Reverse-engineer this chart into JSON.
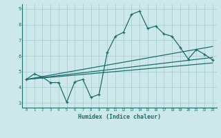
{
  "xlabel": "Humidex (Indice chaleur)",
  "bg_color": "#cce8ea",
  "grid_color": "#aacfd2",
  "line_color": "#1a6e6a",
  "xlim": [
    -0.5,
    23.5
  ],
  "ylim": [
    2.7,
    9.3
  ],
  "yticks": [
    3,
    4,
    5,
    6,
    7,
    8,
    9
  ],
  "xticks": [
    0,
    1,
    2,
    3,
    4,
    5,
    6,
    7,
    8,
    9,
    10,
    11,
    12,
    13,
    14,
    15,
    16,
    17,
    18,
    19,
    20,
    21,
    22,
    23
  ],
  "line1_x": [
    0,
    1,
    2,
    3,
    4,
    5,
    6,
    7,
    8,
    9,
    10,
    11,
    12,
    13,
    14,
    15,
    16,
    17,
    18,
    19,
    20,
    21,
    22,
    23
  ],
  "line1_y": [
    4.5,
    4.85,
    4.65,
    4.3,
    4.3,
    3.05,
    4.35,
    4.5,
    3.35,
    3.55,
    6.2,
    7.25,
    7.5,
    8.65,
    8.85,
    7.75,
    7.9,
    7.4,
    7.25,
    6.55,
    5.8,
    6.4,
    6.1,
    5.75
  ],
  "line2_x": [
    0,
    23
  ],
  "line2_y": [
    4.5,
    6.6
  ],
  "line3_x": [
    0,
    23
  ],
  "line3_y": [
    4.5,
    5.9
  ],
  "line4_x": [
    0,
    23
  ],
  "line4_y": [
    4.5,
    5.55
  ]
}
